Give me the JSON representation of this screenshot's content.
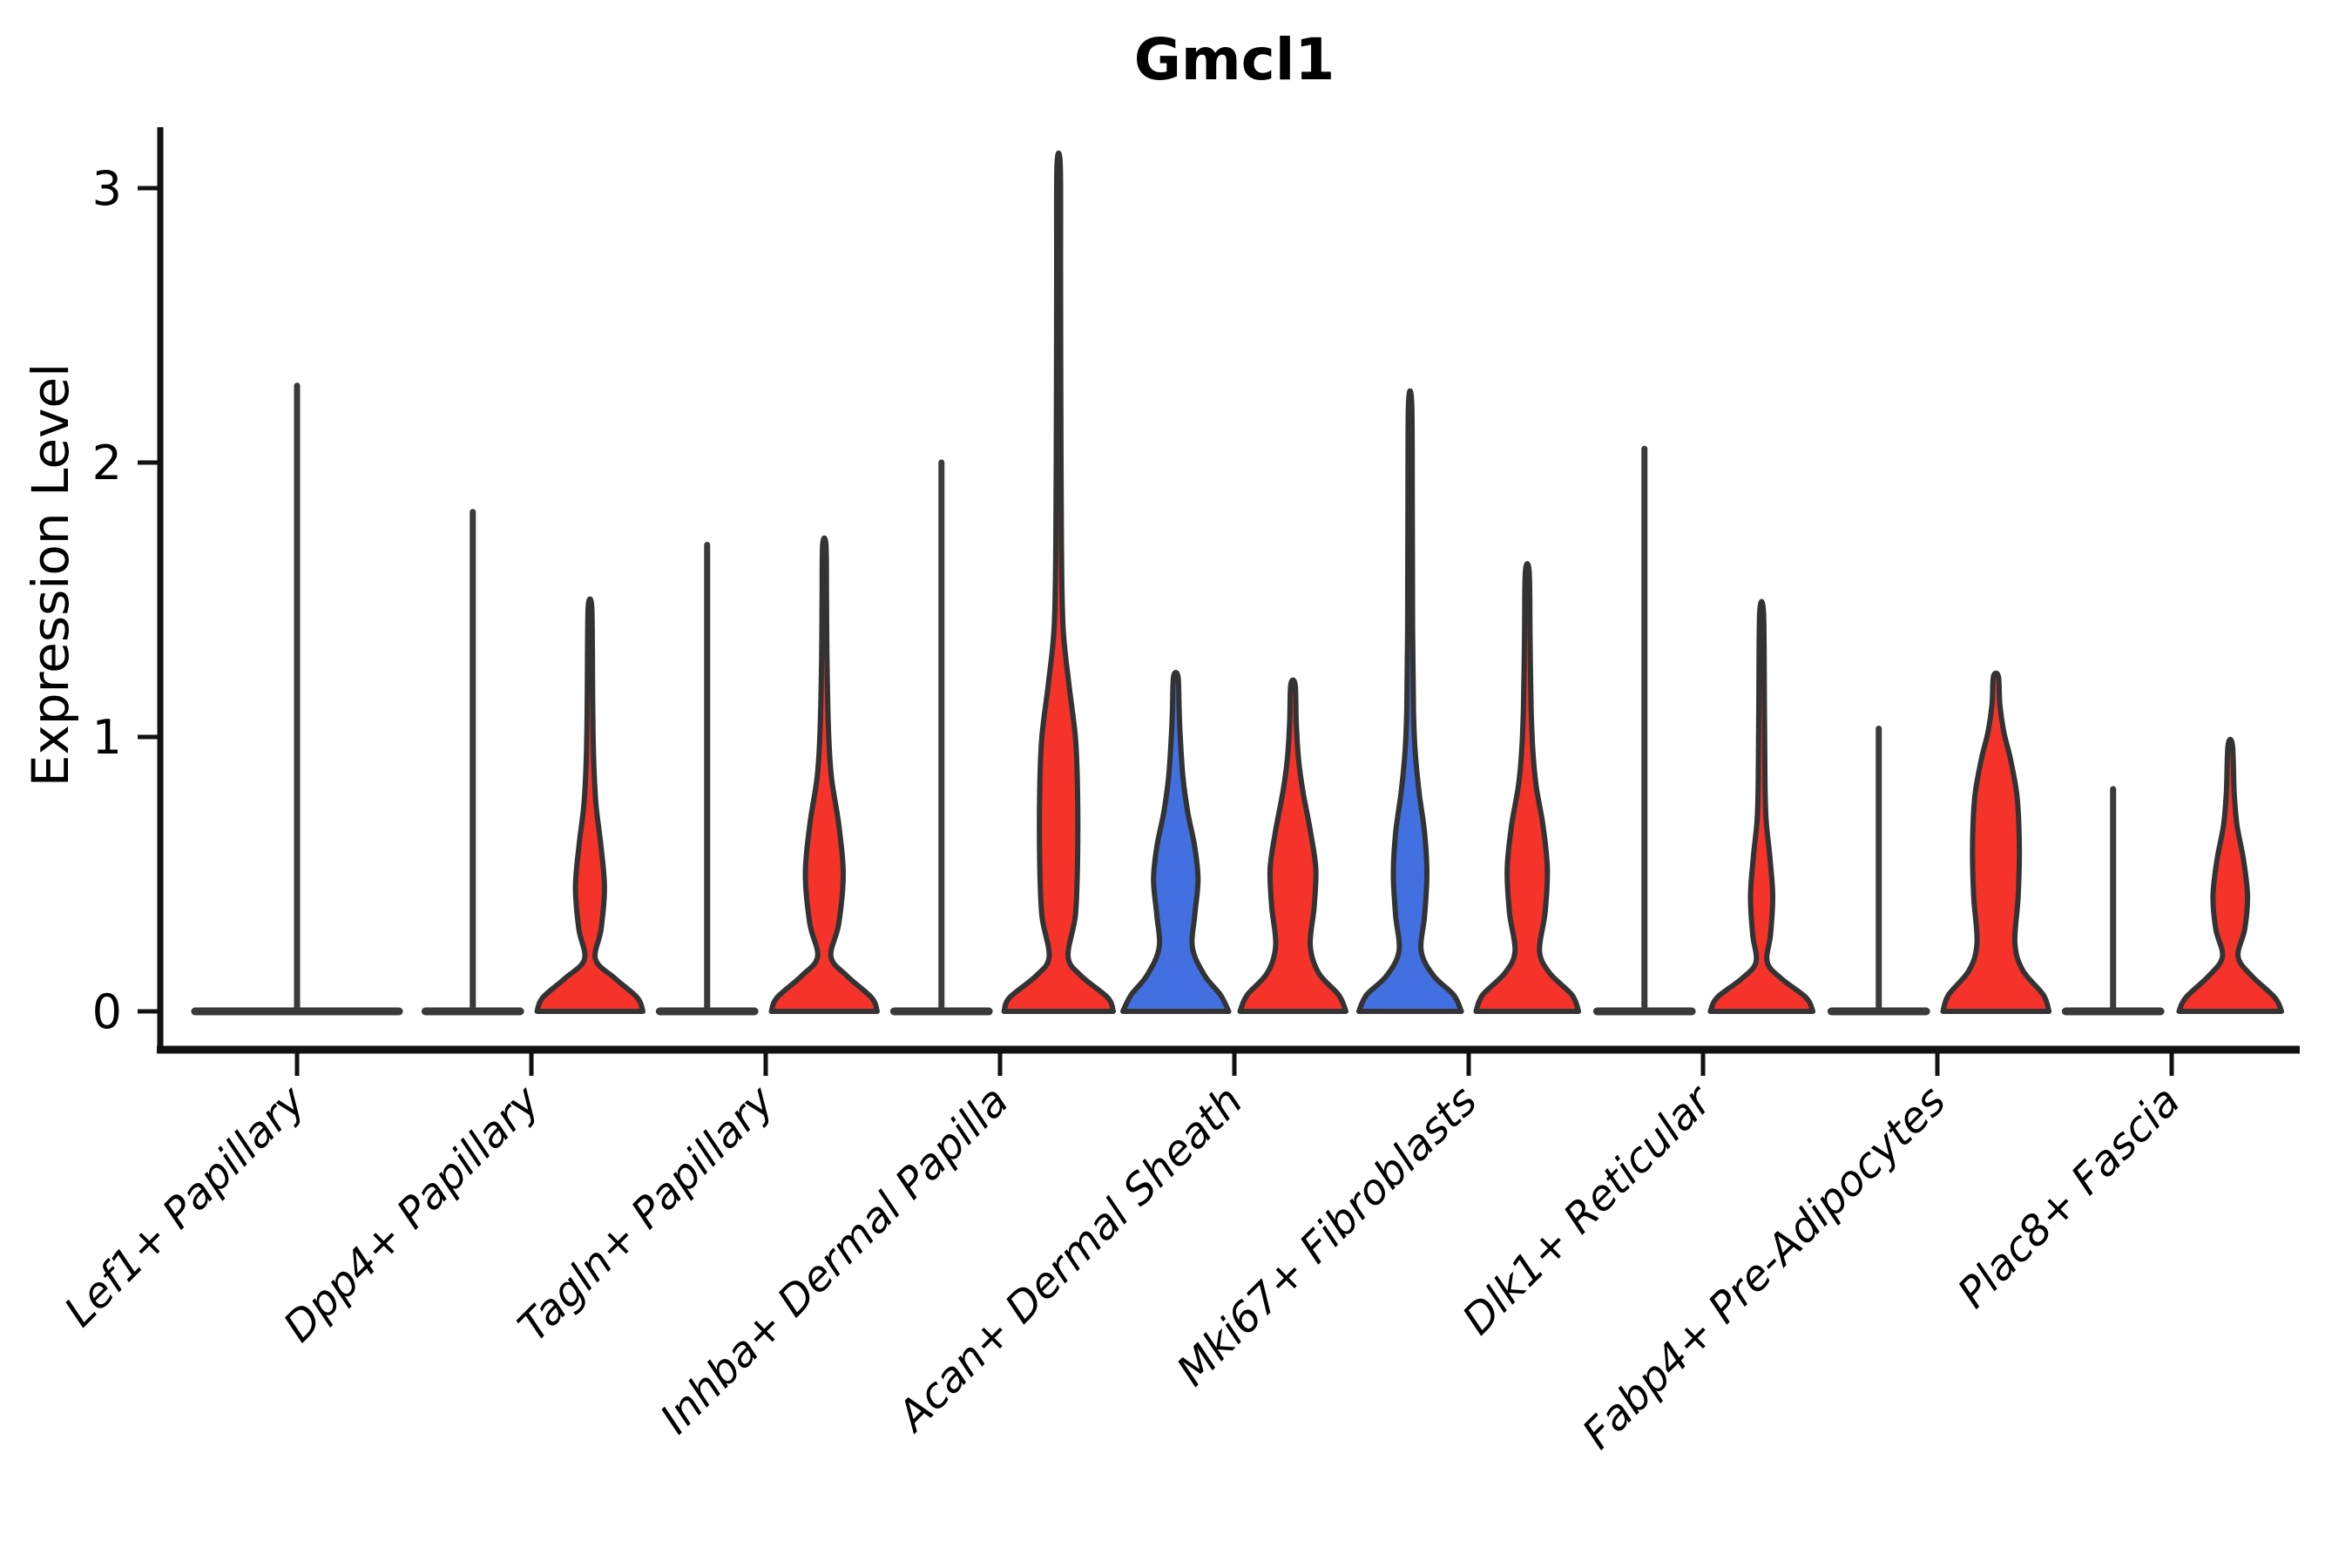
{
  "figure": {
    "title": "Gmcl1",
    "y_axis_label": "Expression Level"
  },
  "chart_data": {
    "type": "violin",
    "title": "Gmcl1",
    "xlabel": "",
    "ylabel": "Expression Level",
    "ylim": [
      -0.15,
      3.3
    ],
    "yticks": [
      0,
      1,
      2,
      3
    ],
    "grid": false,
    "legend": "none",
    "split_palette": {
      "blue": "#4270e0",
      "red": "#f5332b",
      "flat": "#3a3a3a",
      "outline": "#333333"
    },
    "categories": [
      "Lef1+ Papillary",
      "Dpp4+ Papillary",
      "Tagln+ Papillary",
      "Inhba+ Dermal Papilla",
      "Acan+ Dermal Sheath",
      "Mki67+ Fibroblasts",
      "Dlk1+ Reticular",
      "Fabp4+ Pre-Adipocytes",
      "Plac8+ Fascia"
    ],
    "groups": [
      {
        "category": "Lef1+ Papillary",
        "violins": [
          {
            "span": "full",
            "shape": "flat",
            "color": "flat",
            "max_value": 2.28,
            "zero_band_width": 0.95
          }
        ]
      },
      {
        "category": "Dpp4+ Papillary",
        "violins": [
          {
            "span": "left",
            "shape": "flat",
            "color": "flat",
            "max_value": 1.82,
            "zero_band_width": 0.92
          },
          {
            "span": "right",
            "shape": "violin",
            "color": "red",
            "max_value": 1.48,
            "profile": [
              [
                0,
                0.95
              ],
              [
                0.05,
                0.85
              ],
              [
                0.12,
                0.45
              ],
              [
                0.19,
                0.1
              ],
              [
                0.3,
                0.2
              ],
              [
                0.45,
                0.26
              ],
              [
                0.6,
                0.2
              ],
              [
                0.75,
                0.11
              ],
              [
                0.9,
                0.07
              ],
              [
                1.1,
                0.05
              ],
              [
                1.3,
                0.045
              ],
              [
                1.48,
                0.03
              ]
            ]
          }
        ]
      },
      {
        "category": "Tagln+ Papillary",
        "violins": [
          {
            "span": "left",
            "shape": "flat",
            "color": "flat",
            "max_value": 1.7,
            "zero_band_width": 0.92
          },
          {
            "span": "right",
            "shape": "violin",
            "color": "red",
            "max_value": 1.7,
            "profile": [
              [
                0,
                0.95
              ],
              [
                0.05,
                0.85
              ],
              [
                0.13,
                0.4
              ],
              [
                0.2,
                0.12
              ],
              [
                0.32,
                0.26
              ],
              [
                0.5,
                0.34
              ],
              [
                0.68,
                0.26
              ],
              [
                0.85,
                0.13
              ],
              [
                1.0,
                0.08
              ],
              [
                1.25,
                0.05
              ],
              [
                1.5,
                0.04
              ],
              [
                1.7,
                0.03
              ]
            ]
          }
        ]
      },
      {
        "category": "Inhba+ Dermal Papilla",
        "violins": [
          {
            "span": "left",
            "shape": "flat",
            "color": "flat",
            "max_value": 2.0,
            "zero_band_width": 0.92
          },
          {
            "span": "right",
            "shape": "violin",
            "color": "red",
            "max_value": 3.08,
            "profile": [
              [
                0,
                0.98
              ],
              [
                0.05,
                0.88
              ],
              [
                0.13,
                0.4
              ],
              [
                0.2,
                0.17
              ],
              [
                0.35,
                0.3
              ],
              [
                0.55,
                0.34
              ],
              [
                0.8,
                0.34
              ],
              [
                1.0,
                0.3
              ],
              [
                1.2,
                0.18
              ],
              [
                1.4,
                0.08
              ],
              [
                1.7,
                0.05
              ],
              [
                2.2,
                0.04
              ],
              [
                2.7,
                0.035
              ],
              [
                3.08,
                0.03
              ]
            ]
          }
        ]
      },
      {
        "category": "Acan+ Dermal Sheath",
        "violins": [
          {
            "span": "left",
            "shape": "violin",
            "color": "blue",
            "max_value": 1.22,
            "profile": [
              [
                0,
                0.95
              ],
              [
                0.06,
                0.8
              ],
              [
                0.13,
                0.52
              ],
              [
                0.23,
                0.3
              ],
              [
                0.35,
                0.34
              ],
              [
                0.48,
                0.4
              ],
              [
                0.6,
                0.34
              ],
              [
                0.72,
                0.22
              ],
              [
                0.85,
                0.13
              ],
              [
                1.0,
                0.08
              ],
              [
                1.1,
                0.06
              ],
              [
                1.22,
                0.04
              ]
            ]
          },
          {
            "span": "right",
            "shape": "violin",
            "color": "red",
            "max_value": 1.19,
            "profile": [
              [
                0,
                0.95
              ],
              [
                0.06,
                0.82
              ],
              [
                0.14,
                0.46
              ],
              [
                0.24,
                0.31
              ],
              [
                0.38,
                0.38
              ],
              [
                0.52,
                0.41
              ],
              [
                0.66,
                0.31
              ],
              [
                0.8,
                0.18
              ],
              [
                0.92,
                0.1
              ],
              [
                1.05,
                0.06
              ],
              [
                1.19,
                0.04
              ]
            ]
          }
        ]
      },
      {
        "category": "Mki67+ Fibroblasts",
        "violins": [
          {
            "span": "left",
            "shape": "violin",
            "color": "blue",
            "max_value": 2.21,
            "profile": [
              [
                0,
                0.92
              ],
              [
                0.06,
                0.78
              ],
              [
                0.13,
                0.42
              ],
              [
                0.22,
                0.2
              ],
              [
                0.35,
                0.26
              ],
              [
                0.5,
                0.3
              ],
              [
                0.65,
                0.26
              ],
              [
                0.8,
                0.16
              ],
              [
                0.95,
                0.09
              ],
              [
                1.1,
                0.06
              ],
              [
                1.4,
                0.045
              ],
              [
                1.8,
                0.04
              ],
              [
                2.21,
                0.03
              ]
            ]
          },
          {
            "span": "right",
            "shape": "violin",
            "color": "red",
            "max_value": 1.6,
            "profile": [
              [
                0,
                0.92
              ],
              [
                0.06,
                0.8
              ],
              [
                0.14,
                0.4
              ],
              [
                0.22,
                0.22
              ],
              [
                0.36,
                0.32
              ],
              [
                0.52,
                0.36
              ],
              [
                0.68,
                0.28
              ],
              [
                0.82,
                0.16
              ],
              [
                0.95,
                0.1
              ],
              [
                1.1,
                0.07
              ],
              [
                1.35,
                0.05
              ],
              [
                1.6,
                0.035
              ]
            ]
          }
        ]
      },
      {
        "category": "Dlk1+ Reticular",
        "violins": [
          {
            "span": "left",
            "shape": "flat",
            "color": "flat",
            "max_value": 2.05,
            "zero_band_width": 0.92
          },
          {
            "span": "right",
            "shape": "violin",
            "color": "red",
            "max_value": 1.45,
            "profile": [
              [
                0,
                0.92
              ],
              [
                0.05,
                0.8
              ],
              [
                0.12,
                0.35
              ],
              [
                0.18,
                0.1
              ],
              [
                0.28,
                0.16
              ],
              [
                0.42,
                0.2
              ],
              [
                0.56,
                0.15
              ],
              [
                0.7,
                0.08
              ],
              [
                0.85,
                0.06
              ],
              [
                1.1,
                0.05
              ],
              [
                1.45,
                0.035
              ]
            ]
          }
        ]
      },
      {
        "category": "Fabp4+ Pre-Adipocytes",
        "violins": [
          {
            "span": "left",
            "shape": "flat",
            "color": "flat",
            "max_value": 1.03,
            "zero_band_width": 0.92
          },
          {
            "span": "right",
            "shape": "violin",
            "color": "red",
            "max_value": 1.22,
            "profile": [
              [
                0,
                0.95
              ],
              [
                0.06,
                0.85
              ],
              [
                0.15,
                0.48
              ],
              [
                0.25,
                0.34
              ],
              [
                0.42,
                0.4
              ],
              [
                0.6,
                0.42
              ],
              [
                0.78,
                0.38
              ],
              [
                0.92,
                0.26
              ],
              [
                1.02,
                0.14
              ],
              [
                1.12,
                0.07
              ],
              [
                1.22,
                0.045
              ]
            ]
          }
        ]
      },
      {
        "category": "Plac8+ Fascia",
        "violins": [
          {
            "span": "left",
            "shape": "flat",
            "color": "flat",
            "max_value": 0.81,
            "zero_band_width": 0.92
          },
          {
            "span": "right",
            "shape": "violin",
            "color": "red",
            "max_value": 0.97,
            "profile": [
              [
                0,
                0.92
              ],
              [
                0.05,
                0.8
              ],
              [
                0.13,
                0.38
              ],
              [
                0.2,
                0.14
              ],
              [
                0.3,
                0.26
              ],
              [
                0.42,
                0.31
              ],
              [
                0.55,
                0.24
              ],
              [
                0.68,
                0.12
              ],
              [
                0.8,
                0.07
              ],
              [
                0.97,
                0.04
              ]
            ]
          }
        ]
      }
    ]
  }
}
